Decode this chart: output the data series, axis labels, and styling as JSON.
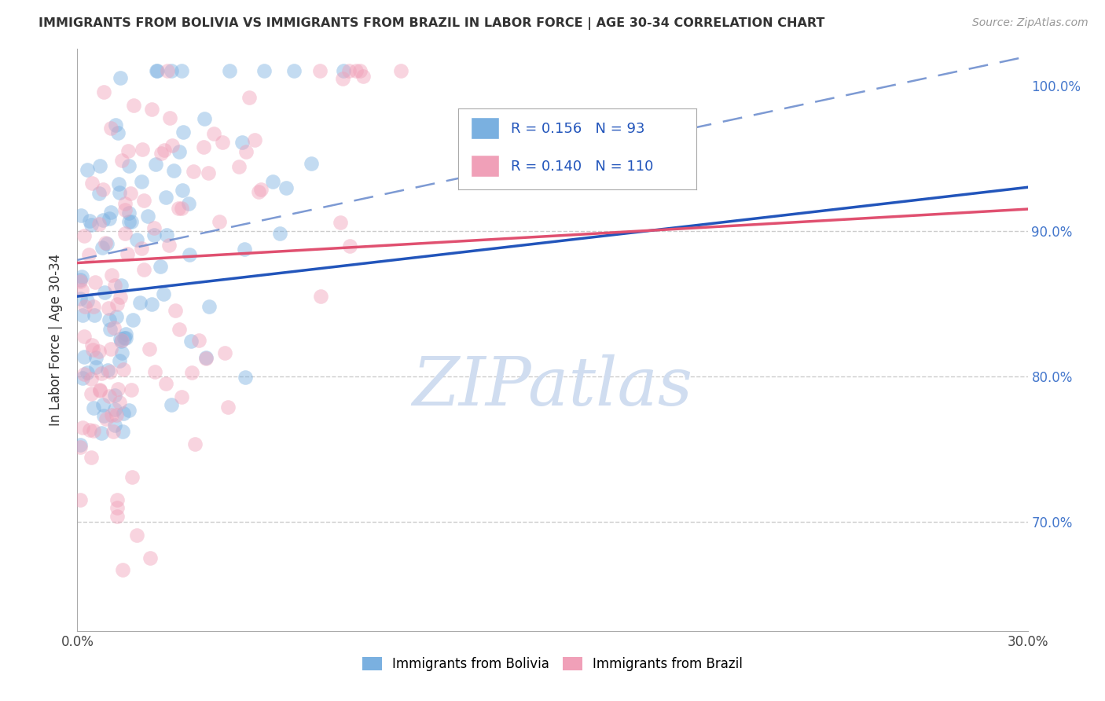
{
  "title": "IMMIGRANTS FROM BOLIVIA VS IMMIGRANTS FROM BRAZIL IN LABOR FORCE | AGE 30-34 CORRELATION CHART",
  "source": "Source: ZipAtlas.com",
  "ylabel": "In Labor Force | Age 30-34",
  "legend_bolivia": "Immigrants from Bolivia",
  "legend_brazil": "Immigrants from Brazil",
  "r_bolivia": 0.156,
  "n_bolivia": 93,
  "r_brazil": 0.14,
  "n_brazil": 110,
  "xlim": [
    0.0,
    0.3
  ],
  "ylim": [
    0.625,
    1.025
  ],
  "xticks": [
    0.0,
    0.05,
    0.1,
    0.15,
    0.2,
    0.25,
    0.3
  ],
  "yticks": [
    0.7,
    0.8,
    0.9,
    1.0
  ],
  "color_bolivia": "#7ab0e0",
  "color_brazil": "#f0a0b8",
  "color_trend_bolivia": "#2255bb",
  "color_trend_brazil": "#e05070",
  "color_dashed": "#6688cc",
  "watermark": "ZIPatlas",
  "watermark_color": "#d0ddf0"
}
